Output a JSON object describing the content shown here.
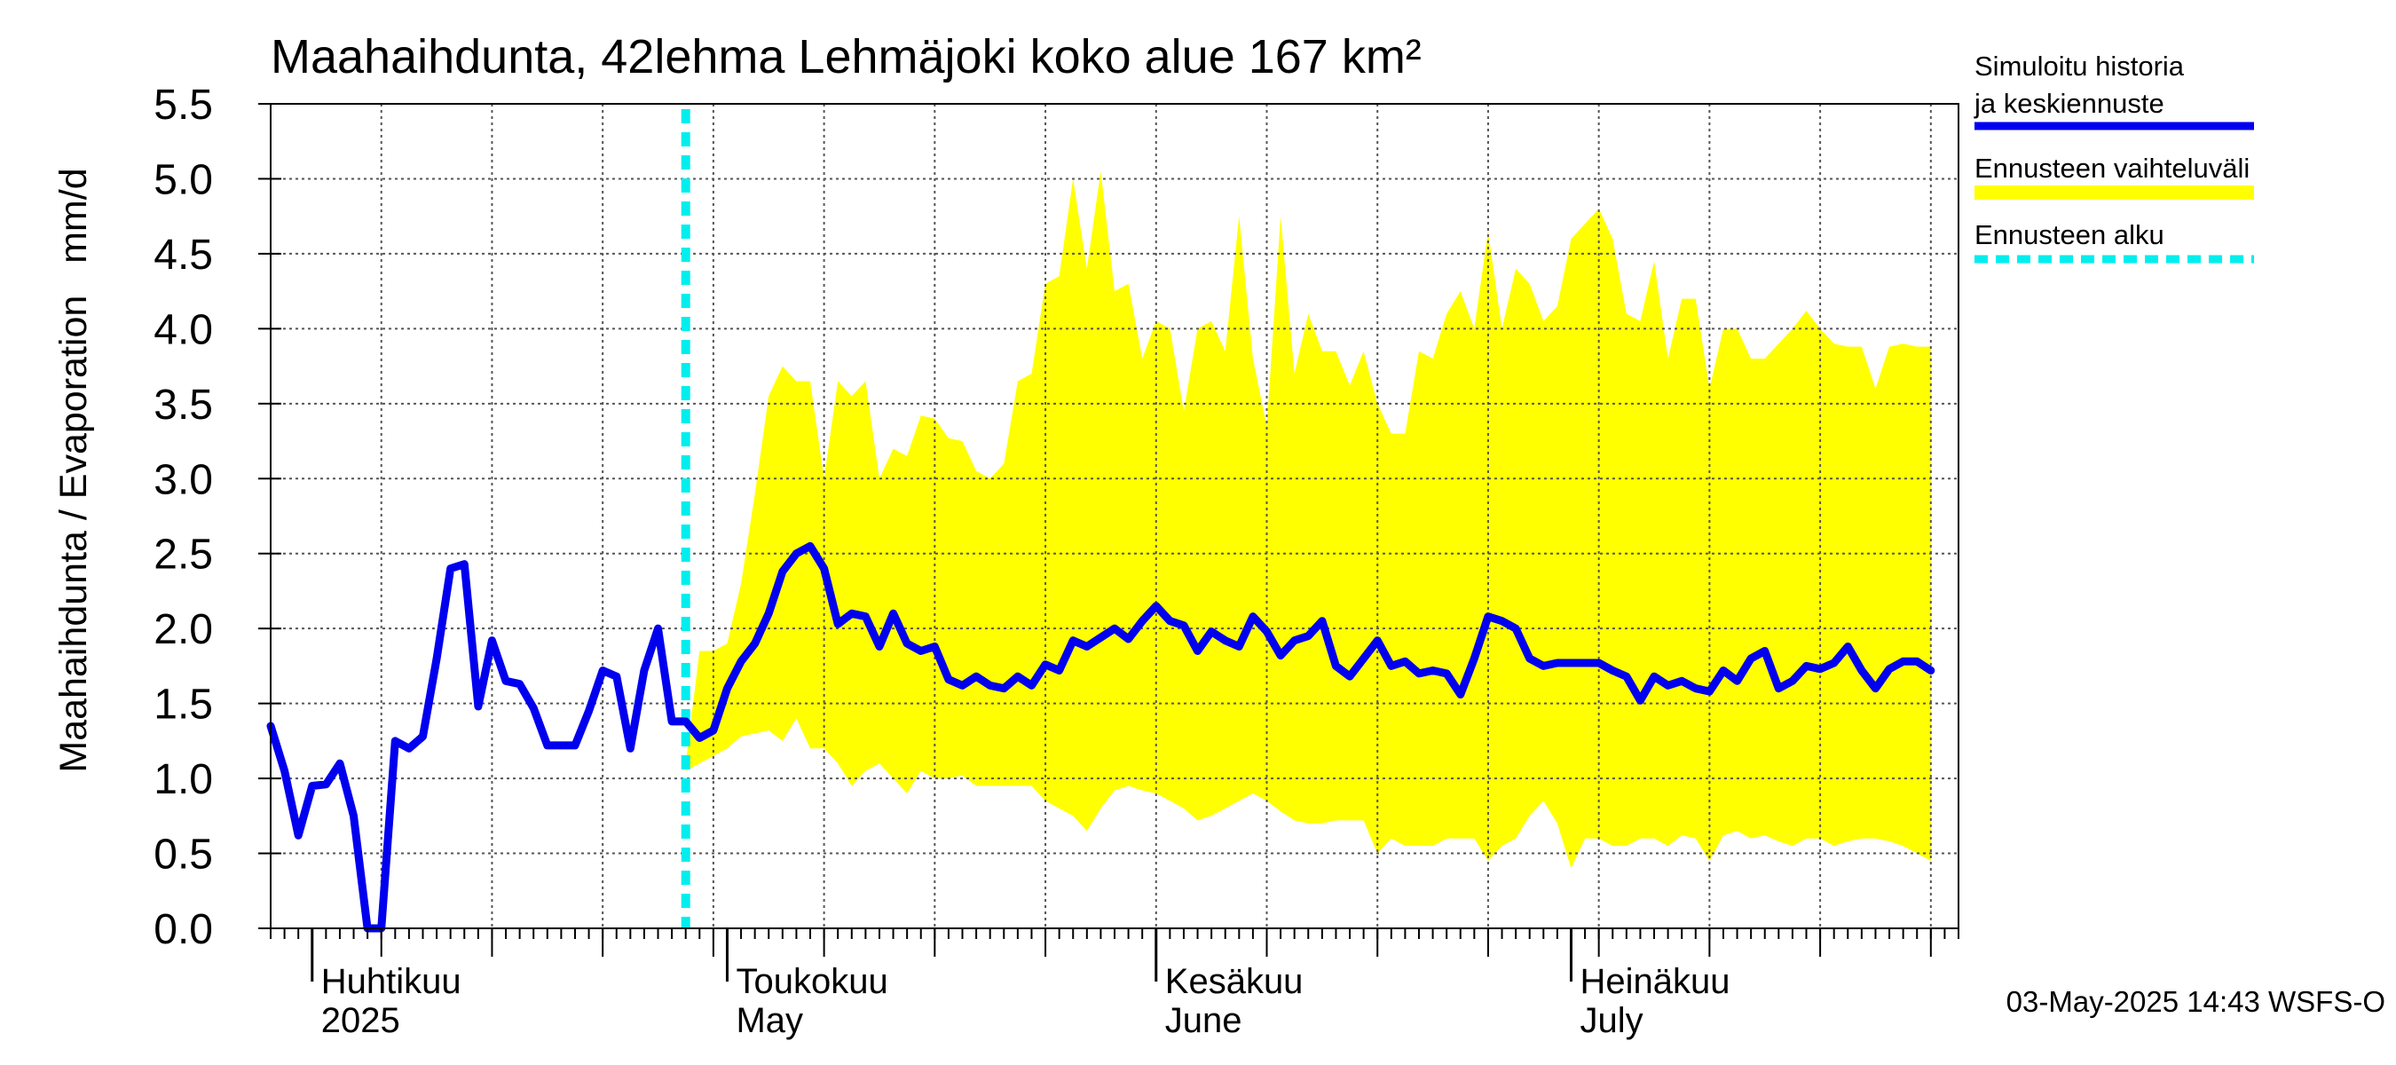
{
  "chart_data": {
    "type": "area",
    "title": "Maahaihdunta, 42lehma Lehmäjoki koko alue 167 km²",
    "ylabel": "Maahaihdunta / Evaporation   mm/d",
    "ylim": [
      0,
      5.5
    ],
    "yticks": [
      "0.0",
      "0.5",
      "1.0",
      "1.5",
      "2.0",
      "2.5",
      "3.0",
      "3.5",
      "4.0",
      "4.5",
      "5.0",
      "5.5"
    ],
    "x_start": "2025-03-29",
    "x_end": "2025-07-29",
    "forecast_start_day": 30,
    "grid": true,
    "months": [
      {
        "label_fi": "Huhtikuu",
        "label_en": "2025",
        "day": 3
      },
      {
        "label_fi": "Toukokuu",
        "label_en": "May",
        "day": 33
      },
      {
        "label_fi": "Kesäkuu",
        "label_en": "June",
        "day": 64
      },
      {
        "label_fi": "Heinäkuu",
        "label_en": "July",
        "day": 94
      }
    ],
    "legend": [
      {
        "label": "Simuloitu historia ja keskiennuste",
        "color": "#0000ee",
        "style": "solid"
      },
      {
        "label": "Ennusteen vaihteluväli",
        "color": "#ffff00",
        "style": "band"
      },
      {
        "label": "Ennusteen alku",
        "color": "#00eeee",
        "style": "dashed"
      }
    ],
    "series_mean": {
      "name": "Simuloitu historia ja keskiennuste",
      "x": [
        0,
        1,
        2,
        3,
        4,
        5,
        6,
        7,
        8,
        9,
        10,
        11,
        12,
        13,
        14,
        15,
        16,
        17,
        18,
        19,
        20,
        21,
        22,
        23,
        24,
        25,
        26,
        27,
        28,
        29,
        30,
        31,
        32,
        33,
        34,
        35,
        36,
        37,
        38,
        39,
        40,
        41,
        42,
        43,
        44,
        45,
        46,
        47,
        48,
        49,
        50,
        51,
        52,
        53,
        54,
        55,
        56,
        57,
        58,
        59,
        60,
        61,
        62,
        63,
        64,
        65,
        66,
        67,
        68,
        69,
        70,
        71,
        72,
        73,
        74,
        75,
        76,
        77,
        78,
        79,
        80,
        81,
        82,
        83,
        84,
        85,
        86,
        87,
        88,
        89,
        90,
        91,
        92,
        93,
        94,
        95,
        96,
        97,
        98,
        99,
        100,
        101,
        102,
        103,
        104,
        105,
        106,
        107,
        108,
        109,
        110,
        111,
        112,
        113,
        114,
        115,
        116,
        117,
        118,
        119,
        120
      ],
      "values": [
        1.35,
        1.05,
        0.62,
        0.95,
        0.96,
        1.1,
        0.75,
        0.0,
        0.0,
        1.25,
        1.2,
        1.28,
        1.8,
        2.4,
        2.43,
        1.48,
        1.92,
        1.65,
        1.63,
        1.47,
        1.22,
        1.22,
        1.22,
        1.45,
        1.72,
        1.68,
        1.2,
        1.72,
        2.0,
        1.38,
        1.38,
        1.27,
        1.32,
        1.6,
        1.78,
        1.9,
        2.1,
        2.38,
        2.5,
        2.55,
        2.4,
        2.03,
        2.1,
        2.08,
        1.88,
        2.1,
        1.9,
        1.85,
        1.88,
        1.66,
        1.62,
        1.68,
        1.62,
        1.6,
        1.68,
        1.62,
        1.76,
        1.72,
        1.92,
        1.88,
        1.94,
        2.0,
        1.93,
        2.05,
        2.15,
        2.05,
        2.02,
        1.85,
        1.98,
        1.92,
        1.88,
        2.08,
        1.98,
        1.82,
        1.92,
        1.95,
        2.05,
        1.75,
        1.68,
        1.8,
        1.92,
        1.75,
        1.78,
        1.7,
        1.72,
        1.7,
        1.56,
        1.8,
        2.08,
        2.05,
        2.0,
        1.8,
        1.75,
        1.77,
        1.77,
        1.77,
        1.77,
        1.72,
        1.68,
        1.52,
        1.68,
        1.62,
        1.65,
        1.6,
        1.58,
        1.72,
        1.65,
        1.8,
        1.85,
        1.6,
        1.65,
        1.75,
        1.73,
        1.77,
        1.88,
        1.72,
        1.6,
        1.73,
        1.78,
        1.78,
        1.72
      ]
    },
    "series_band": {
      "name": "Ennusteen vaihteluväli",
      "x": [
        30,
        31,
        32,
        33,
        34,
        35,
        36,
        37,
        38,
        39,
        40,
        41,
        42,
        43,
        44,
        45,
        46,
        47,
        48,
        49,
        50,
        51,
        52,
        53,
        54,
        55,
        56,
        57,
        58,
        59,
        60,
        61,
        62,
        63,
        64,
        65,
        66,
        67,
        68,
        69,
        70,
        71,
        72,
        73,
        74,
        75,
        76,
        77,
        78,
        79,
        80,
        81,
        82,
        83,
        84,
        85,
        86,
        87,
        88,
        89,
        90,
        91,
        92,
        93,
        94,
        95,
        96,
        97,
        98,
        99,
        100,
        101,
        102,
        103,
        104,
        105,
        106,
        107,
        108,
        109,
        110,
        111,
        112,
        113,
        114,
        115,
        116,
        117,
        118,
        119,
        120
      ],
      "upper": [
        1.1,
        1.85,
        1.85,
        1.9,
        2.3,
        2.9,
        3.55,
        3.75,
        3.65,
        3.65,
        3.0,
        3.65,
        3.55,
        3.65,
        3.0,
        3.2,
        3.15,
        3.42,
        3.4,
        3.27,
        3.25,
        3.05,
        3.0,
        3.1,
        3.65,
        3.7,
        4.3,
        4.35,
        5.0,
        4.4,
        5.05,
        4.25,
        4.3,
        3.8,
        4.05,
        4.0,
        3.45,
        4.0,
        4.05,
        3.85,
        4.75,
        3.8,
        3.35,
        4.75,
        3.7,
        4.1,
        3.85,
        3.85,
        3.62,
        3.85,
        3.5,
        3.3,
        3.3,
        3.85,
        3.8,
        4.1,
        4.25,
        4.0,
        4.65,
        4.0,
        4.4,
        4.3,
        4.05,
        4.15,
        4.6,
        4.7,
        4.8,
        4.6,
        4.1,
        4.05,
        4.45,
        3.8,
        4.2,
        4.2,
        3.6,
        4.0,
        4.0,
        3.8,
        3.8,
        3.9,
        4.0,
        4.12,
        4.0,
        3.9,
        3.88,
        3.88,
        3.6,
        3.88,
        3.9,
        3.88,
        3.88
      ],
      "lower": [
        1.05,
        1.1,
        1.15,
        1.2,
        1.28,
        1.3,
        1.32,
        1.25,
        1.4,
        1.2,
        1.2,
        1.1,
        0.95,
        1.05,
        1.1,
        1.0,
        0.9,
        1.05,
        1.0,
        1.0,
        1.02,
        0.95,
        0.95,
        0.95,
        0.95,
        0.95,
        0.85,
        0.8,
        0.75,
        0.65,
        0.8,
        0.92,
        0.95,
        0.92,
        0.9,
        0.85,
        0.8,
        0.72,
        0.75,
        0.8,
        0.85,
        0.9,
        0.85,
        0.78,
        0.72,
        0.7,
        0.7,
        0.72,
        0.72,
        0.72,
        0.5,
        0.6,
        0.55,
        0.55,
        0.55,
        0.6,
        0.6,
        0.6,
        0.45,
        0.55,
        0.6,
        0.75,
        0.85,
        0.7,
        0.4,
        0.6,
        0.6,
        0.55,
        0.55,
        0.6,
        0.6,
        0.55,
        0.62,
        0.6,
        0.45,
        0.62,
        0.65,
        0.6,
        0.62,
        0.58,
        0.55,
        0.6,
        0.6,
        0.55,
        0.58,
        0.6,
        0.6,
        0.58,
        0.55,
        0.5,
        0.45
      ]
    },
    "footer": "03-May-2025 14:43 WSFS-O"
  }
}
